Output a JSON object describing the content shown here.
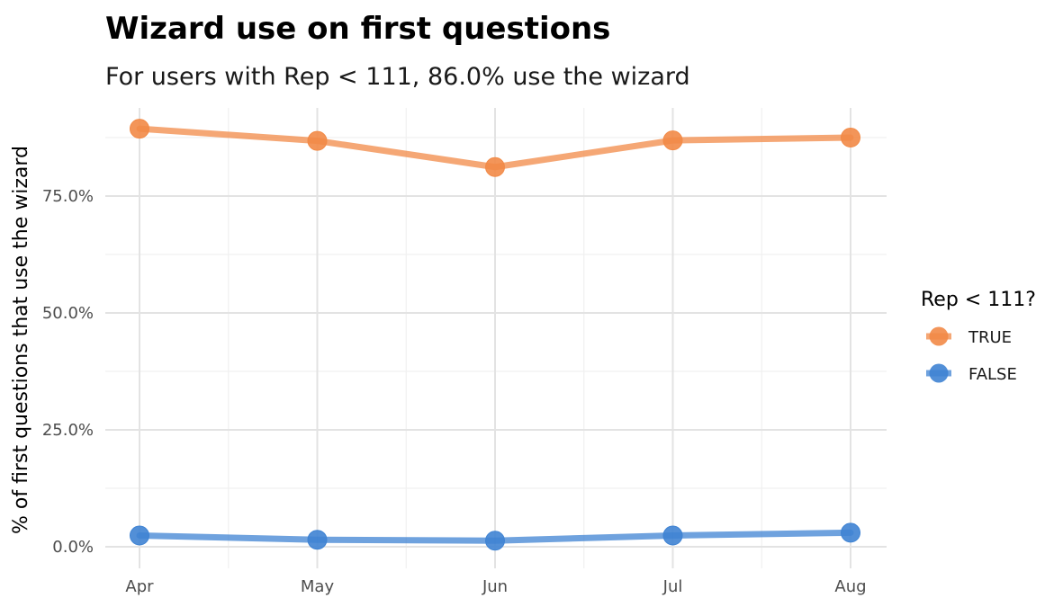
{
  "chart_data": {
    "type": "line",
    "title": "Wizard use on first questions",
    "subtitle": "For users with Rep < 111, 86.0% use the wizard",
    "xlabel": "",
    "ylabel": "% of first questions that use the wizard",
    "categories": [
      "Apr",
      "May",
      "Jun",
      "Jul",
      "Aug"
    ],
    "ylim": [
      0,
      0.94
    ],
    "yticks": [
      0,
      0.25,
      0.5,
      0.75
    ],
    "ytick_labels": [
      "0.0%",
      "25.0%",
      "50.0%",
      "75.0%"
    ],
    "grid": true,
    "legend": {
      "title": "Rep < 111?",
      "placement": "right"
    },
    "series": [
      {
        "name": "TRUE",
        "color": "#F28A47",
        "values": [
          0.894,
          0.868,
          0.812,
          0.869,
          0.875
        ]
      },
      {
        "name": "FALSE",
        "color": "#3F83D3",
        "values": [
          0.024,
          0.015,
          0.013,
          0.024,
          0.03
        ]
      }
    ]
  }
}
